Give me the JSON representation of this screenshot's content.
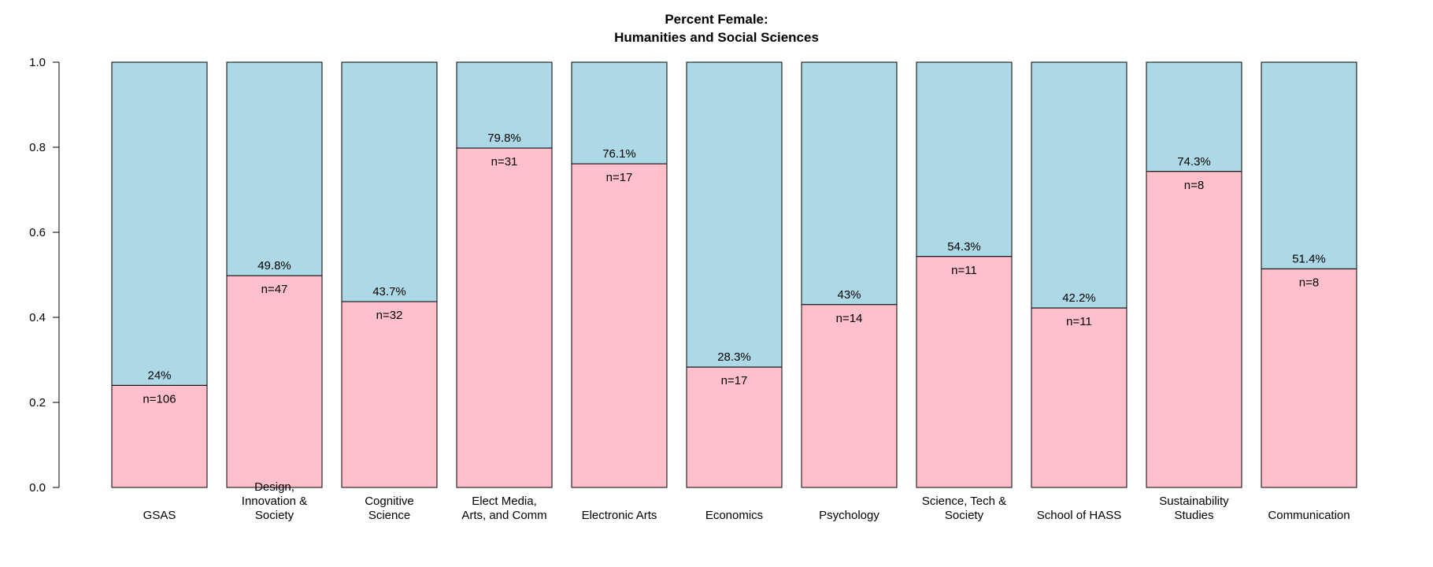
{
  "chart_data": {
    "type": "bar",
    "stacked": true,
    "title": [
      "Percent Female:",
      "Humanities and Social Sciences"
    ],
    "ylim": [
      0,
      1
    ],
    "yticks": [
      "0.0",
      "0.2",
      "0.4",
      "0.6",
      "0.8",
      "1.0"
    ],
    "grid": false,
    "colors": {
      "female": "#ffc0cb",
      "remainder": "#add8e6",
      "outline": "#000000"
    },
    "categories": [
      [
        "GSAS"
      ],
      [
        "Design,",
        "Innovation &",
        "Society"
      ],
      [
        "Cognitive",
        "Science"
      ],
      [
        "Elect Media,",
        "Arts, and Comm"
      ],
      [
        "Electronic Arts"
      ],
      [
        "Economics"
      ],
      [
        "Psychology"
      ],
      [
        "Science, Tech &",
        "Society"
      ],
      [
        "School of HASS"
      ],
      [
        "Sustainability",
        "Studies"
      ],
      [
        "Communication"
      ]
    ],
    "values": [
      0.24,
      0.498,
      0.437,
      0.798,
      0.761,
      0.283,
      0.43,
      0.543,
      0.422,
      0.743,
      0.514
    ],
    "percent_labels": [
      "24%",
      "49.8%",
      "43.7%",
      "79.8%",
      "76.1%",
      "28.3%",
      "43%",
      "54.3%",
      "42.2%",
      "74.3%",
      "51.4%"
    ],
    "n_labels": [
      "n=106",
      "n=47",
      "n=32",
      "n=31",
      "n=17",
      "n=17",
      "n=14",
      "n=11",
      "n=11",
      "n=8",
      "n=8"
    ]
  }
}
